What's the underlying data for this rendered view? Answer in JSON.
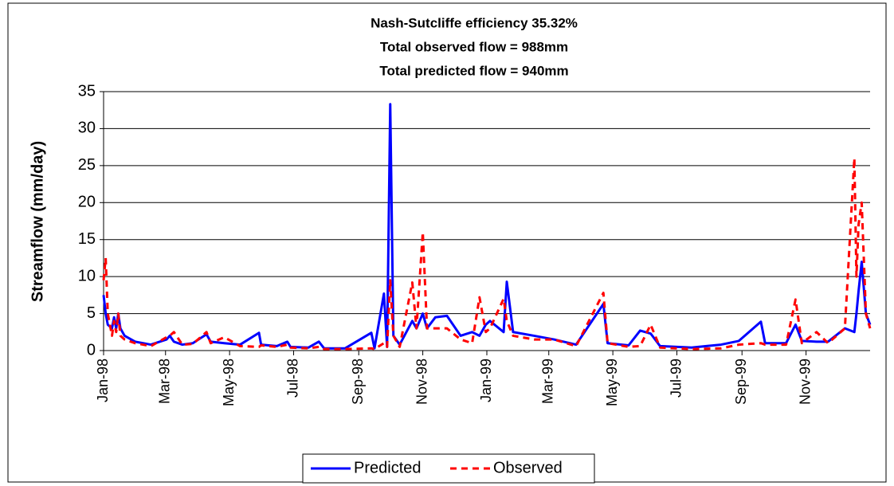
{
  "chart_data": {
    "type": "line",
    "title": [
      "Nash-Sutcliffe efficiency 35.32%",
      "Total observed flow = 988mm",
      "Total predicted flow = 940mm"
    ],
    "y_label": "Streamflow (mm/day)",
    "x": [
      0,
      2,
      4,
      8,
      10,
      12,
      14,
      16,
      20,
      30,
      45,
      60,
      63,
      67,
      75,
      85,
      98,
      102,
      115,
      130,
      148,
      150,
      165,
      175,
      178,
      195,
      205,
      210,
      230,
      255,
      258,
      267,
      270,
      273,
      276,
      282,
      294,
      298,
      304,
      308,
      316,
      327,
      340,
      351,
      358,
      364,
      368,
      381,
      384,
      390,
      410,
      429,
      450,
      476,
      480,
      500,
      511,
      521,
      530,
      560,
      588,
      605,
      626,
      630,
      650,
      659,
      665,
      679,
      690,
      706,
      715,
      717,
      719,
      722,
      726,
      730
    ],
    "series": [
      {
        "name": "Predicted",
        "color": "#0000ff",
        "dash": false,
        "values": [
          7.5,
          5,
          3.5,
          3,
          4.5,
          3,
          5,
          3,
          2,
          1.2,
          0.8,
          1.5,
          2,
          1.2,
          0.8,
          1,
          2.2,
          1.2,
          1,
          0.8,
          2.4,
          0.8,
          0.6,
          1.2,
          0.5,
          0.4,
          1.2,
          0.3,
          0.3,
          2.4,
          0.3,
          7.7,
          0.5,
          33.3,
          2,
          0.8,
          4,
          3,
          5,
          3,
          4.5,
          4.7,
          2,
          2.5,
          2,
          3.5,
          4,
          2.5,
          9.3,
          2.5,
          2,
          1.5,
          0.8,
          6.3,
          1,
          0.7,
          2.7,
          2.3,
          0.6,
          0.4,
          0.8,
          1.3,
          3.9,
          1,
          1,
          3.5,
          1.3,
          1.2,
          1.2,
          3,
          2.5,
          5,
          8,
          12,
          5,
          3.5
        ]
      },
      {
        "name": "Observed",
        "color": "#ff0000",
        "dash": true,
        "values": [
          9.5,
          12.5,
          5,
          2,
          4,
          2.5,
          5,
          2,
          1.5,
          1,
          0.6,
          1.8,
          2,
          2.5,
          0.8,
          0.9,
          2.5,
          1,
          1.8,
          0.6,
          0.5,
          0.7,
          0.5,
          0.8,
          0.4,
          0.3,
          0.5,
          0.2,
          0.2,
          0.3,
          0.2,
          1,
          0.5,
          9.5,
          2,
          0.5,
          9.2,
          3,
          16,
          3,
          3,
          3,
          1.5,
          1,
          7.2,
          2.5,
          3,
          7,
          4,
          2,
          1.5,
          1.5,
          0.6,
          7.8,
          1,
          0.5,
          0.6,
          3.5,
          0.4,
          0.2,
          0.3,
          0.8,
          1,
          0.8,
          0.8,
          6.9,
          1,
          2.5,
          1,
          3,
          26,
          10,
          17,
          20,
          5,
          3
        ]
      }
    ],
    "xlim": [
      0,
      730
    ],
    "xticks": [
      {
        "value": 0,
        "label": "Jan-98"
      },
      {
        "value": 59,
        "label": "Mar-98"
      },
      {
        "value": 120,
        "label": "May-98"
      },
      {
        "value": 181,
        "label": "Jul-98"
      },
      {
        "value": 243,
        "label": "Sep-98"
      },
      {
        "value": 304,
        "label": "Nov-98"
      },
      {
        "value": 365,
        "label": "Jan-99"
      },
      {
        "value": 424,
        "label": "Mar-99"
      },
      {
        "value": 485,
        "label": "May-99"
      },
      {
        "value": 546,
        "label": "Jul-99"
      },
      {
        "value": 608,
        "label": "Sep-99"
      },
      {
        "value": 669,
        "label": "Nov-99"
      }
    ],
    "ylim": [
      0,
      35
    ],
    "yticks": [
      0,
      5,
      10,
      15,
      20,
      25,
      30,
      35
    ],
    "grid": true,
    "legend": "bottom"
  }
}
